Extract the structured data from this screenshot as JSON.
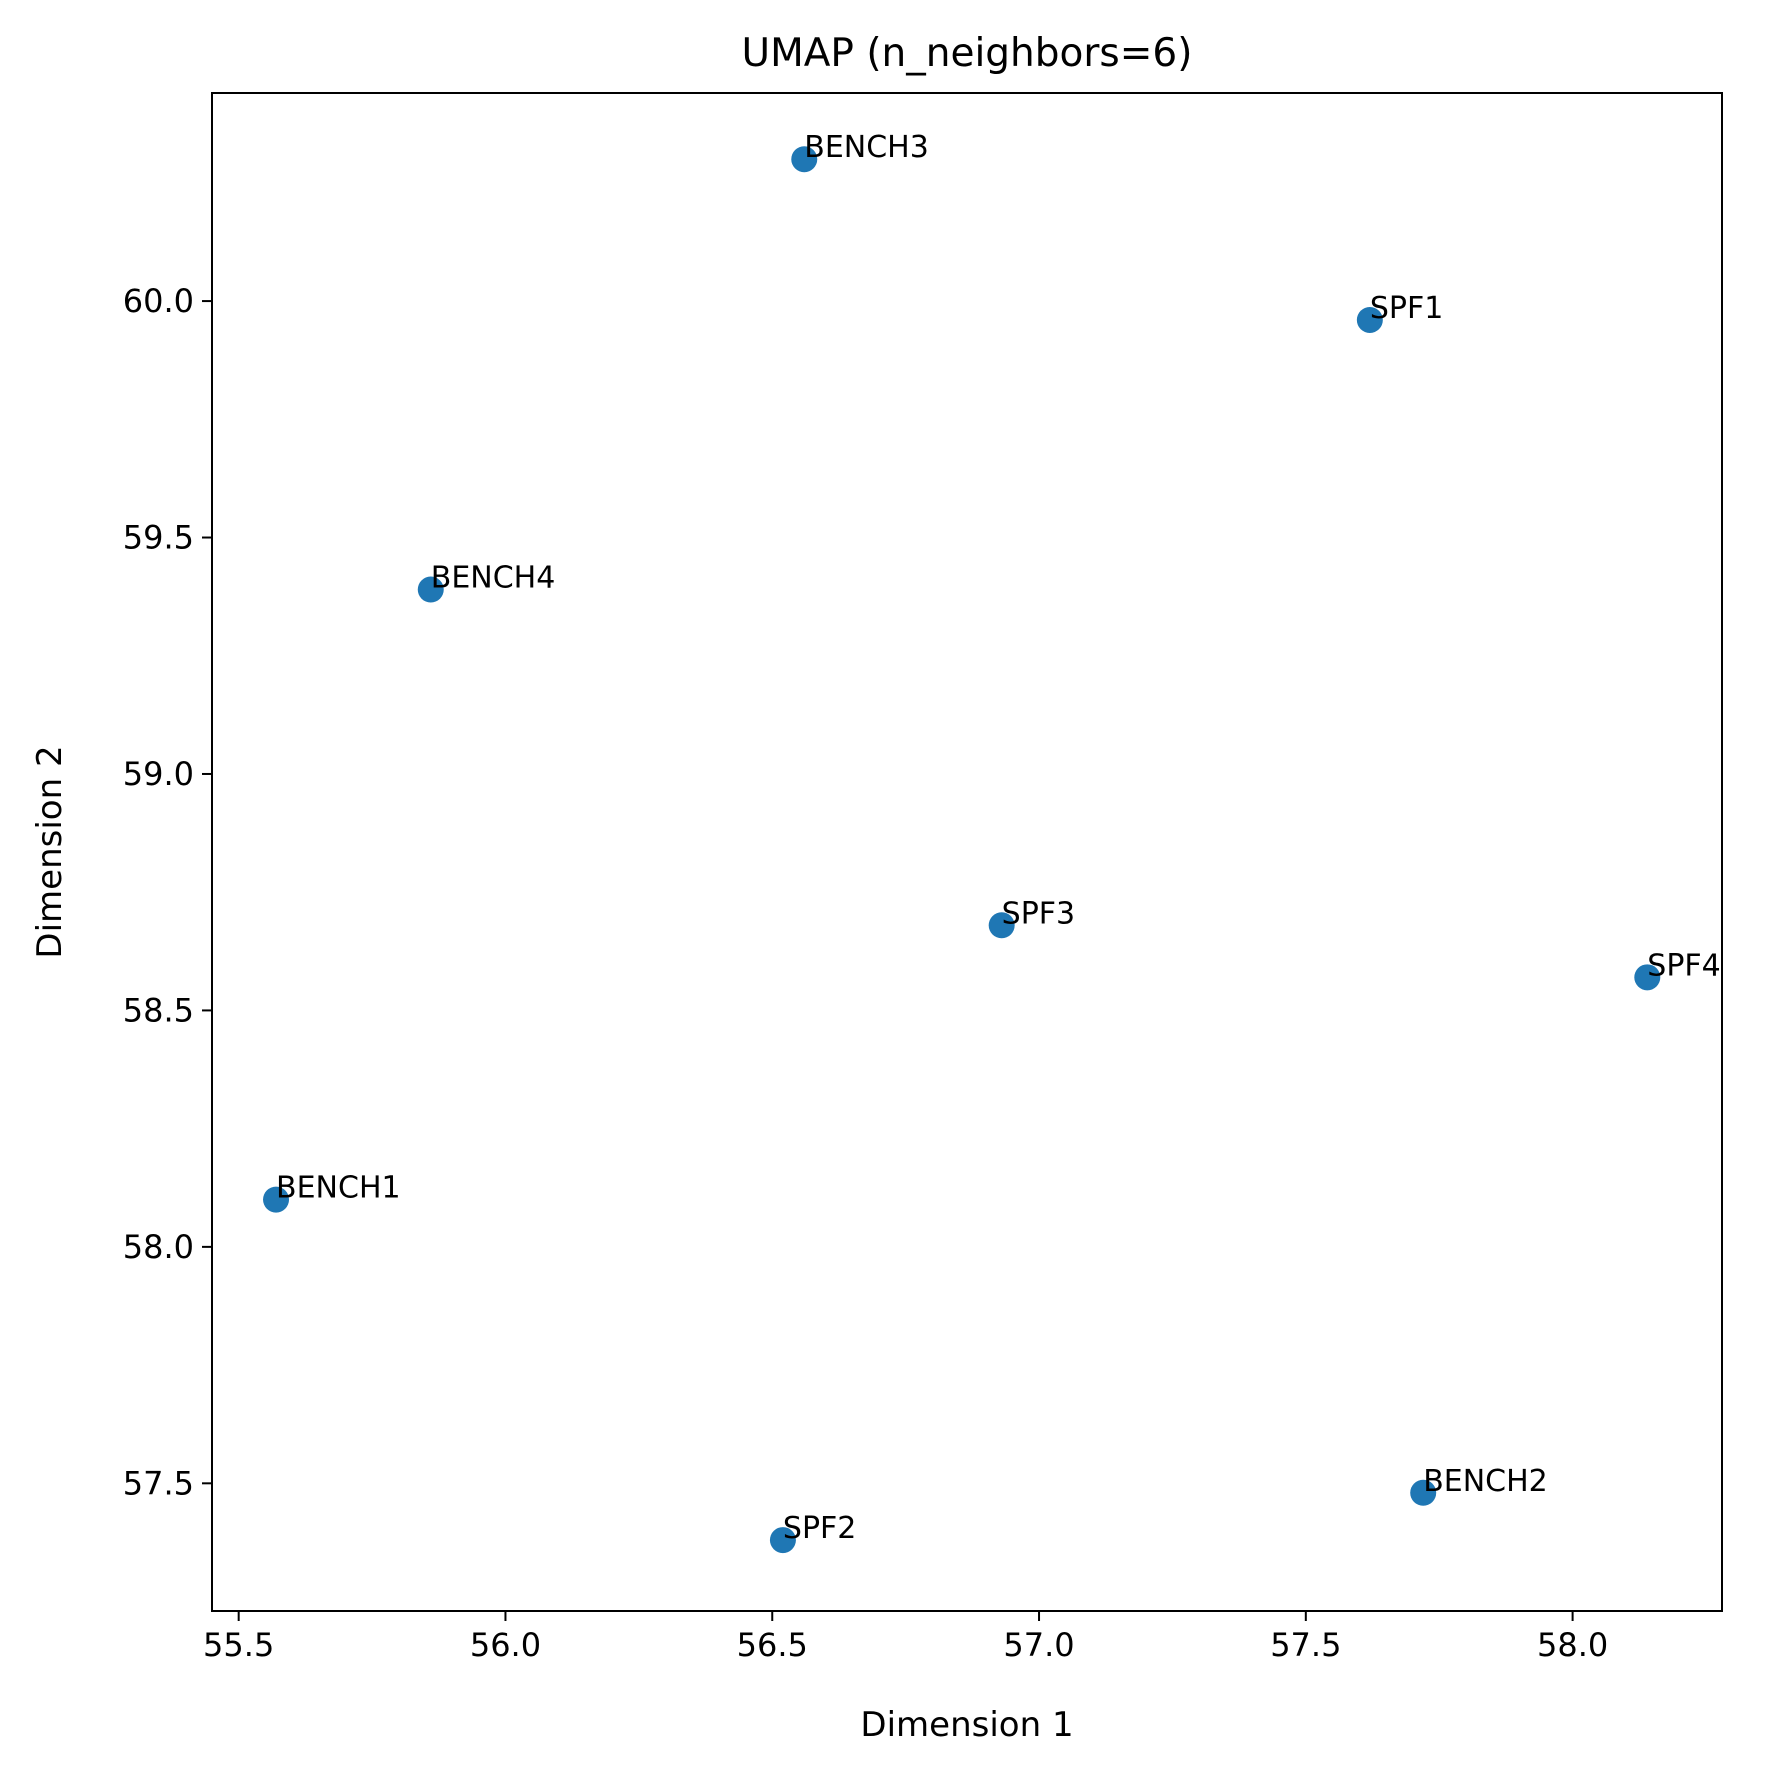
{
  "chart_data": {
    "type": "scatter",
    "title": "UMAP (n_neighbors=6)",
    "xlabel": "Dimension 1",
    "ylabel": "Dimension 2",
    "xlim": [
      55.45,
      58.28
    ],
    "ylim": [
      57.23,
      60.44
    ],
    "x_ticks": [
      55.5,
      56.0,
      56.5,
      57.0,
      57.5,
      58.0
    ],
    "x_tick_labels": [
      "55.5",
      "56.0",
      "56.5",
      "57.0",
      "57.5",
      "58.0"
    ],
    "y_ticks": [
      57.5,
      58.0,
      58.5,
      59.0,
      59.5,
      60.0
    ],
    "y_tick_labels": [
      "57.5",
      "58.0",
      "58.5",
      "59.0",
      "59.5",
      "60.0"
    ],
    "grid": false,
    "marker_color": "#1f77b4",
    "points": [
      {
        "label": "BENCH3",
        "x": 56.56,
        "y": 60.3
      },
      {
        "label": "SPF1",
        "x": 57.62,
        "y": 59.96
      },
      {
        "label": "BENCH4",
        "x": 55.86,
        "y": 59.39
      },
      {
        "label": "SPF3",
        "x": 56.93,
        "y": 58.68
      },
      {
        "label": "SPF4",
        "x": 58.14,
        "y": 58.57
      },
      {
        "label": "BENCH1",
        "x": 55.57,
        "y": 58.1
      },
      {
        "label": "BENCH2",
        "x": 57.72,
        "y": 57.48
      },
      {
        "label": "SPF2",
        "x": 56.52,
        "y": 57.38
      }
    ]
  }
}
